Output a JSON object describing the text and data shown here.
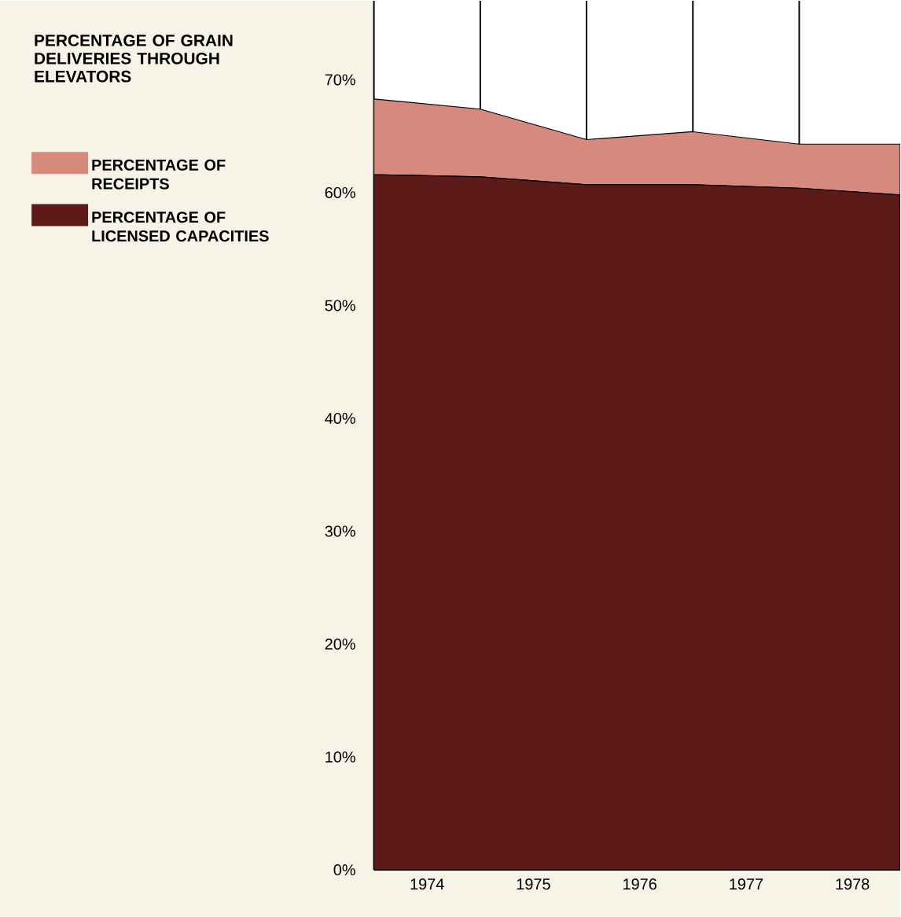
{
  "chart_data": {
    "type": "area",
    "stacked": true,
    "title": "PERCENTAGE OF GRAIN DELIVERIES THROUGH ELEVATORS",
    "x": [
      1973.5,
      1974.5,
      1975.5,
      1976.5,
      1977.5,
      1978.45
    ],
    "series": [
      {
        "name": "PERCENTAGE OF LICENSED CAPACITIES",
        "color": "#5c1a18",
        "values": [
          61.6,
          61.4,
          60.7,
          60.7,
          60.4,
          59.8
        ]
      },
      {
        "name": "PERCENTAGE OF RECEIPTS",
        "color": "#d68a7e",
        "values": [
          6.7,
          6.0,
          4.0,
          4.7,
          3.9,
          4.5
        ]
      }
    ],
    "xlim": [
      1973.5,
      1978.45
    ],
    "xticks": [
      1974,
      1975,
      1976,
      1977,
      1978
    ],
    "ylim": [
      0,
      77
    ],
    "yticks": [
      {
        "value": 0,
        "label": "0%"
      },
      {
        "value": 10,
        "label": "10%"
      },
      {
        "value": 20,
        "label": "20%"
      },
      {
        "value": 30,
        "label": "30%"
      },
      {
        "value": 40,
        "label": "40%"
      },
      {
        "value": 50,
        "label": "50%"
      },
      {
        "value": 60,
        "label": "60%"
      },
      {
        "value": 70,
        "label": "70%"
      }
    ],
    "ref_lines": [
      {
        "axis": "x",
        "value": 1974.5
      },
      {
        "axis": "x",
        "value": 1975.5
      },
      {
        "axis": "x",
        "value": 1976.5
      },
      {
        "axis": "x",
        "value": 1977.5
      }
    ],
    "legend": "left"
  }
}
